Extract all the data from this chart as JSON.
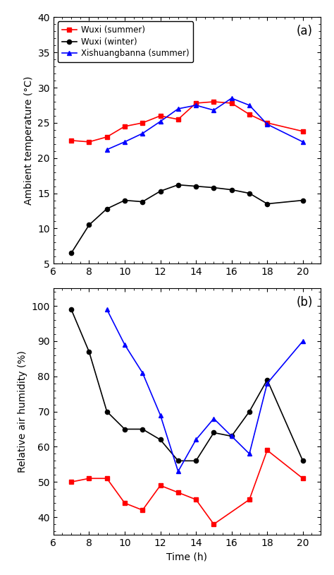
{
  "temp_x_wuxi_summer": [
    7,
    8,
    9,
    10,
    11,
    12,
    13,
    14,
    15,
    16,
    17,
    18,
    20
  ],
  "temp_y_wuxi_summer": [
    22.5,
    22.3,
    23.0,
    24.5,
    25.0,
    26.0,
    25.5,
    27.8,
    28.0,
    27.8,
    26.2,
    25.0,
    23.8
  ],
  "temp_x_wuxi_winter": [
    7,
    8,
    9,
    10,
    11,
    12,
    13,
    14,
    15,
    16,
    17,
    18,
    20
  ],
  "temp_y_wuxi_winter": [
    6.5,
    10.5,
    12.8,
    14.0,
    13.8,
    15.3,
    16.2,
    16.0,
    15.8,
    15.5,
    15.0,
    13.5,
    14.0
  ],
  "temp_x_xishuang_summer": [
    9,
    10,
    11,
    12,
    13,
    14,
    15,
    16,
    17,
    18,
    20
  ],
  "temp_y_xishuang_summer": [
    21.2,
    22.3,
    23.5,
    25.2,
    27.0,
    27.5,
    26.8,
    28.5,
    27.5,
    24.8,
    22.3
  ],
  "hum_x_wuxi_summer": [
    7,
    8,
    9,
    10,
    11,
    12,
    13,
    14,
    15,
    17,
    18,
    20
  ],
  "hum_y_wuxi_summer": [
    50,
    51,
    51,
    44,
    42,
    49,
    47,
    45,
    38,
    45,
    59,
    51
  ],
  "hum_x_wuxi_winter": [
    7,
    8,
    9,
    10,
    11,
    12,
    13,
    14,
    15,
    16,
    17,
    18,
    20
  ],
  "hum_y_wuxi_winter": [
    99,
    87,
    70,
    65,
    65,
    62,
    56,
    56,
    64,
    63,
    70,
    79,
    56
  ],
  "hum_x_xishuang_summer": [
    9,
    10,
    11,
    12,
    13,
    14,
    15,
    16,
    17,
    18,
    20
  ],
  "hum_y_xishuang_summer": [
    99,
    89,
    81,
    69,
    53,
    62,
    68,
    63,
    58,
    78,
    90
  ],
  "color_red": "#ff0000",
  "color_black": "#000000",
  "color_blue": "#0000ff",
  "temp_ylim": [
    5,
    40
  ],
  "temp_yticks": [
    5,
    10,
    15,
    20,
    25,
    30,
    35,
    40
  ],
  "hum_ylim": [
    35,
    105
  ],
  "hum_yticks": [
    40,
    50,
    60,
    70,
    80,
    90,
    100
  ],
  "xlim": [
    6,
    21
  ],
  "xticks": [
    6,
    8,
    10,
    12,
    14,
    16,
    18,
    20
  ],
  "xtick_labels": [
    "6",
    "8",
    "10",
    "12",
    "14",
    "16",
    "18",
    "20"
  ],
  "xlabel": "Time (h)",
  "temp_ylabel": "Ambient temperature (°C)",
  "hum_ylabel": "Relative air humidity (%)",
  "legend_labels": [
    "Wuxi (summer)",
    "Wuxi (winter)",
    "Xishuangbanna (summer)"
  ],
  "label_a": "(a)",
  "label_b": "(b)",
  "fig_width": 4.74,
  "fig_height": 8.14,
  "fig_dpi": 100
}
